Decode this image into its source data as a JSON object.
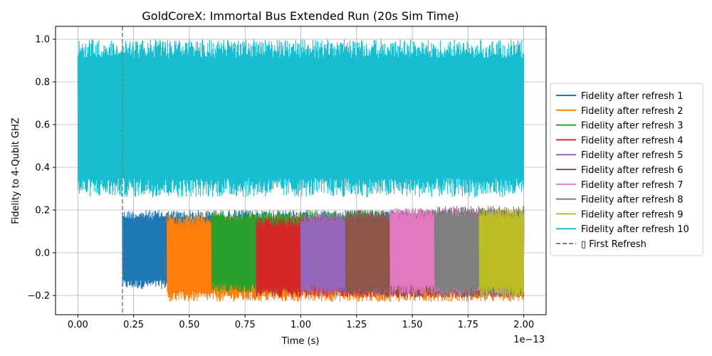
{
  "chart_data": {
    "type": "line",
    "title": "GoldCoreX: Immortal Bus Extended Run (20s Sim Time)",
    "xlabel": "Time (s)",
    "ylabel": "Fidelity to 4-Qubit GHZ",
    "x_offset_label": "1e−13",
    "xlim": [
      -0.1,
      2.1
    ],
    "ylim": [
      -0.29,
      1.06
    ],
    "xticks": [
      0.0,
      0.25,
      0.5,
      0.75,
      1.0,
      1.25,
      1.5,
      1.75,
      2.0
    ],
    "xtick_labels": [
      "0.00",
      "0.25",
      "0.50",
      "0.75",
      "1.00",
      "1.25",
      "1.50",
      "1.75",
      "2.00"
    ],
    "yticks": [
      -0.2,
      0.0,
      0.2,
      0.4,
      0.6,
      0.8,
      1.0
    ],
    "ytick_labels": [
      "−0.2",
      "0.0",
      "0.2",
      "0.4",
      "0.6",
      "0.8",
      "1.0"
    ],
    "grid": true,
    "legend_position": "center-right-outside",
    "series": [
      {
        "name": "Fidelity after refresh 1",
        "color": "#1f77b4",
        "x_range": [
          0.2,
          2.0
        ],
        "band_low": -0.17,
        "band_high": 0.2,
        "dense_until": 0.4
      },
      {
        "name": "Fidelity after refresh 2",
        "color": "#ff7f0e",
        "x_range": [
          0.4,
          2.0
        ],
        "band_low": -0.23,
        "band_high": 0.18,
        "dense_until": 0.6
      },
      {
        "name": "Fidelity after refresh 3",
        "color": "#2ca02c",
        "x_range": [
          0.6,
          2.0
        ],
        "band_low": -0.19,
        "band_high": 0.2,
        "dense_until": 0.8
      },
      {
        "name": "Fidelity after refresh 4",
        "color": "#d62728",
        "x_range": [
          0.8,
          2.0
        ],
        "band_low": -0.21,
        "band_high": 0.17,
        "dense_until": 1.0
      },
      {
        "name": "Fidelity after refresh 5",
        "color": "#9467bd",
        "x_range": [
          1.0,
          2.0
        ],
        "band_low": -0.2,
        "band_high": 0.19,
        "dense_until": 1.2
      },
      {
        "name": "Fidelity after refresh 6",
        "color": "#8c564b",
        "x_range": [
          1.2,
          2.0
        ],
        "band_low": -0.21,
        "band_high": 0.2,
        "dense_until": 1.4
      },
      {
        "name": "Fidelity after refresh 7",
        "color": "#e377c2",
        "x_range": [
          1.4,
          2.0
        ],
        "band_low": -0.2,
        "band_high": 0.21,
        "dense_until": 1.6
      },
      {
        "name": "Fidelity after refresh 8",
        "color": "#7f7f7f",
        "x_range": [
          1.6,
          2.0
        ],
        "band_low": -0.21,
        "band_high": 0.22,
        "dense_until": 1.8
      },
      {
        "name": "Fidelity after refresh 9",
        "color": "#bcbd22",
        "x_range": [
          1.8,
          2.0
        ],
        "band_low": -0.21,
        "band_high": 0.21,
        "dense_until": 2.0
      },
      {
        "name": "Fidelity after refresh 10",
        "color": "#17becf",
        "x_range": [
          0.0,
          2.0
        ],
        "band_low": 0.26,
        "band_high": 1.0,
        "dense_until": 2.0
      }
    ],
    "vline": {
      "name": "▯ First Refresh",
      "x": 0.2,
      "color": "#7f7f7f",
      "style": "dashed"
    }
  }
}
